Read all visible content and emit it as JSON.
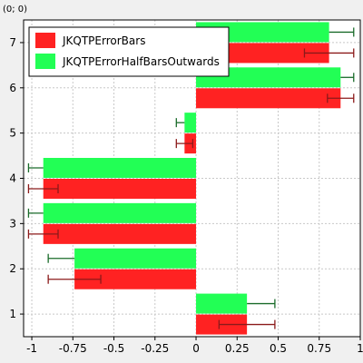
{
  "coordinate_readout": "(0; 0)",
  "chart_data": {
    "type": "bar",
    "orientation": "horizontal",
    "categories": [
      1,
      2,
      3,
      4,
      5,
      6,
      7
    ],
    "xlim": [
      -1.05,
      1.0
    ],
    "ylim": [
      0.5,
      7.5
    ],
    "xticks": [
      -1,
      -0.75,
      -0.5,
      -0.25,
      0,
      0.25,
      0.5,
      0.75,
      1
    ],
    "xtick_labels": [
      "-1",
      "-0.75",
      "-0.5",
      "-0.25",
      "0",
      "0.25",
      "0.5",
      "0.75",
      "1"
    ],
    "yticks": [
      1,
      2,
      3,
      4,
      5,
      6,
      7
    ],
    "ytick_labels": [
      "1",
      "2",
      "3",
      "4",
      "5",
      "6",
      "7"
    ],
    "grid": true,
    "legend_position": "top-left",
    "series": [
      {
        "name": "JKQTPErrorBars",
        "color": "#ff2222",
        "error_color": "#8b1a1a",
        "error_style": "symmetric",
        "values": [
          0.31,
          -0.74,
          -0.93,
          -0.93,
          -0.07,
          0.88,
          0.81
        ],
        "errors": [
          0.17,
          0.16,
          0.09,
          0.09,
          0.05,
          0.08,
          0.15
        ]
      },
      {
        "name": "JKQTPErrorHalfBarsOutwards",
        "color": "#22ff55",
        "error_color": "#1a6b2a",
        "error_style": "half-outwards",
        "values": [
          0.31,
          -0.74,
          -0.93,
          -0.93,
          -0.07,
          0.88,
          0.81
        ],
        "errors": [
          0.17,
          0.16,
          0.09,
          0.09,
          0.05,
          0.08,
          0.15
        ]
      }
    ]
  }
}
